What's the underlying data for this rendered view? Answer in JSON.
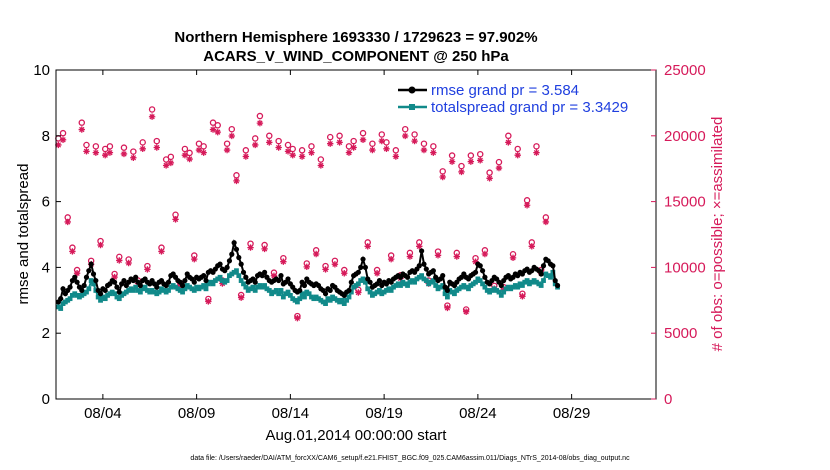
{
  "chart_data": {
    "type": "line",
    "title_line1": "Northern Hemisphere 1693330 / 1729623 = 97.902%",
    "title_line2": "ACARS_V_WIND_COMPONENT @ 250 hPa",
    "xlabel": "Aug.01,2014 00:00:00 start",
    "ylabel_left": "rmse and totalspread",
    "ylabel_right": "# of obs: o=possible; ×=assimilated",
    "footer": "data file: /Users/raeder/DAI/ATM_forcXX/CAM6_setup/f.e21.FHIST_BGC.f09_025.CAM6assim.011/Diags_NTrS_2014-08/obs_diag_output.nc",
    "xlim": [
      1,
      33
    ],
    "ylim_left": [
      0,
      10
    ],
    "ylim_right": [
      0,
      25000
    ],
    "x_ticks": [
      3.5,
      8.5,
      13.5,
      18.5,
      23.5,
      28.5
    ],
    "x_tick_labels": [
      "08/04",
      "08/09",
      "08/14",
      "08/19",
      "08/24",
      "08/29"
    ],
    "y_ticks_left": [
      "0",
      "2",
      "4",
      "6",
      "8",
      "10"
    ],
    "y_ticks_right": [
      "0",
      "5000",
      "10000",
      "15000",
      "20000",
      "25000"
    ],
    "colors": {
      "rmse": "#000000",
      "spread": "#118a8a",
      "obs": "#d61a5a",
      "legend_text": "#1f3fdf"
    },
    "series": [
      {
        "name": "rmse",
        "legend": "rmse grand pr = 3.584",
        "start": 1.125,
        "step": 0.125,
        "values": [
          2.95,
          3.05,
          3.35,
          3.2,
          3.3,
          3.4,
          3.6,
          3.7,
          3.55,
          3.4,
          3.3,
          3.45,
          3.7,
          3.9,
          4.1,
          3.8,
          3.6,
          3.3,
          3.2,
          3.35,
          3.3,
          3.45,
          3.5,
          3.6,
          3.55,
          3.4,
          3.25,
          3.5,
          3.6,
          3.45,
          3.55,
          3.65,
          3.6,
          3.7,
          3.55,
          3.45,
          3.6,
          3.65,
          3.55,
          3.5,
          3.6,
          3.5,
          3.4,
          3.55,
          3.6,
          3.5,
          3.45,
          3.55,
          3.75,
          3.8,
          3.7,
          3.6,
          3.55,
          3.45,
          3.6,
          3.8,
          3.7,
          3.65,
          3.55,
          3.7,
          3.65,
          3.7,
          3.75,
          3.6,
          3.85,
          3.9,
          3.85,
          3.95,
          4.05,
          4.1,
          3.95,
          3.9,
          4.0,
          4.2,
          4.4,
          4.75,
          4.55,
          4.3,
          4.1,
          3.85,
          3.7,
          3.55,
          3.6,
          3.65,
          3.55,
          3.75,
          3.8,
          3.75,
          3.85,
          3.7,
          3.6,
          3.55,
          3.6,
          3.65,
          3.6,
          3.75,
          3.5,
          3.55,
          3.65,
          3.5,
          3.4,
          3.3,
          3.25,
          3.3,
          3.55,
          3.45,
          3.65,
          3.55,
          3.5,
          3.45,
          3.5,
          3.45,
          3.35,
          3.3,
          3.2,
          3.35,
          3.3,
          3.45,
          3.4,
          3.3,
          3.25,
          3.2,
          3.15,
          3.25,
          3.3,
          3.55,
          3.75,
          3.8,
          3.85,
          4.0,
          4.25,
          4.0,
          3.65,
          3.55,
          3.4,
          3.45,
          3.5,
          3.6,
          3.45,
          3.55,
          3.5,
          3.6,
          3.55,
          3.65,
          3.7,
          3.75,
          3.7,
          3.8,
          3.75,
          3.7,
          3.85,
          3.9,
          3.85,
          3.95,
          4.05,
          4.5,
          4.1,
          3.95,
          3.8,
          3.85,
          3.9,
          3.7,
          3.6,
          3.65,
          3.75,
          3.4,
          3.3,
          3.55,
          3.5,
          3.45,
          3.55,
          3.65,
          3.7,
          3.8,
          3.7,
          3.65,
          3.75,
          3.8,
          3.85,
          4.1,
          4.05,
          3.9,
          3.7,
          3.55,
          3.5,
          3.6,
          3.7,
          3.65,
          3.55,
          3.45,
          3.6,
          3.7,
          3.75,
          3.65,
          3.7,
          3.8,
          3.75,
          3.85,
          3.8,
          3.9,
          3.95,
          3.85,
          3.9,
          4.0,
          3.95,
          3.9,
          3.8,
          4.05,
          4.25,
          4.2,
          4.1,
          4.05,
          3.6,
          3.45
        ]
      },
      {
        "name": "totalspread",
        "legend": "totalspread grand pr = 3.3429",
        "start": 1.125,
        "step": 0.125,
        "values": [
          2.8,
          2.75,
          2.9,
          2.95,
          3.0,
          3.05,
          3.15,
          3.2,
          3.15,
          3.1,
          3.15,
          3.2,
          3.25,
          3.35,
          3.6,
          3.5,
          3.3,
          3.1,
          3.0,
          3.1,
          3.05,
          3.15,
          3.2,
          3.25,
          3.2,
          3.1,
          3.05,
          3.15,
          3.2,
          3.25,
          3.3,
          3.35,
          3.3,
          3.4,
          3.3,
          3.25,
          3.35,
          3.4,
          3.3,
          3.25,
          3.3,
          3.25,
          3.2,
          3.25,
          3.35,
          3.3,
          3.25,
          3.3,
          3.4,
          3.45,
          3.4,
          3.35,
          3.3,
          3.25,
          3.35,
          3.45,
          3.4,
          3.35,
          3.3,
          3.4,
          3.35,
          3.4,
          3.45,
          3.35,
          3.5,
          3.55,
          3.5,
          3.6,
          3.65,
          3.7,
          3.6,
          3.55,
          3.6,
          3.75,
          3.8,
          3.85,
          3.9,
          3.75,
          3.6,
          3.5,
          3.4,
          3.3,
          3.35,
          3.4,
          3.3,
          3.4,
          3.45,
          3.4,
          3.45,
          3.35,
          3.3,
          3.2,
          3.25,
          3.3,
          3.2,
          3.3,
          3.1,
          3.2,
          3.25,
          3.15,
          3.05,
          3.0,
          2.95,
          3.05,
          3.2,
          3.1,
          3.25,
          3.2,
          3.1,
          3.05,
          3.1,
          3.05,
          3.0,
          2.95,
          2.9,
          3.05,
          3.0,
          3.1,
          3.05,
          3.0,
          2.95,
          3.0,
          2.9,
          3.0,
          3.1,
          3.25,
          3.4,
          3.45,
          3.5,
          3.6,
          3.65,
          3.55,
          3.35,
          3.25,
          3.15,
          3.2,
          3.25,
          3.3,
          3.2,
          3.25,
          3.3,
          3.35,
          3.3,
          3.4,
          3.45,
          3.5,
          3.45,
          3.55,
          3.5,
          3.45,
          3.55,
          3.6,
          3.55,
          3.65,
          3.7,
          3.75,
          3.65,
          3.6,
          3.5,
          3.55,
          3.6,
          3.45,
          3.35,
          3.4,
          3.45,
          3.2,
          3.1,
          3.3,
          3.25,
          3.2,
          3.3,
          3.35,
          3.4,
          3.45,
          3.4,
          3.35,
          3.45,
          3.5,
          3.55,
          3.65,
          3.6,
          3.5,
          3.4,
          3.3,
          3.25,
          3.3,
          3.35,
          3.3,
          3.25,
          3.15,
          3.25,
          3.35,
          3.4,
          3.35,
          3.4,
          3.45,
          3.4,
          3.5,
          3.45,
          3.55,
          3.6,
          3.5,
          3.55,
          3.6,
          3.55,
          3.5,
          3.45,
          3.6,
          3.8,
          3.75,
          3.7,
          3.85,
          3.5,
          3.4
        ]
      }
    ],
    "obs_counts": {
      "name": "# of obs",
      "start": 1.125,
      "step": 0.25,
      "possible": [
        19800,
        20200,
        13800,
        11500,
        9800,
        21000,
        19300,
        10500,
        19200,
        12000,
        19000,
        19200,
        9500,
        10800,
        19100,
        10600,
        18800,
        9000,
        19500,
        10100,
        22000,
        19600,
        11500,
        18200,
        18400,
        14000,
        8800,
        19000,
        18700,
        10900,
        19400,
        19200,
        7600,
        21000,
        20800,
        9000,
        19400,
        20500,
        17000,
        7900,
        18900,
        11800,
        19800,
        21500,
        11700,
        20000,
        9600,
        19600,
        10700,
        19300,
        19000,
        6300,
        18900,
        10300,
        19200,
        11300,
        18200,
        10100,
        19900,
        10500,
        20000,
        9800,
        19200,
        19600,
        8300,
        20200,
        11900,
        19400,
        9800,
        20100,
        19500,
        10900,
        18900,
        9400,
        20500,
        11100,
        20100,
        11900,
        19400,
        9000,
        19200,
        11200,
        17300,
        7100,
        18500,
        11100,
        17700,
        6800,
        18500,
        10700,
        18600,
        11300,
        17200,
        8600,
        18000,
        8500,
        20000,
        11000,
        19000,
        8000,
        15100,
        11900,
        19200,
        9800,
        13800
      ]
    },
    "legend_position": "top-right"
  }
}
